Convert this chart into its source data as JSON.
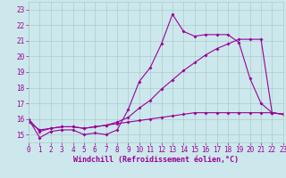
{
  "xlabel": "Windchill (Refroidissement éolien,°C)",
  "xlim": [
    0,
    23
  ],
  "ylim": [
    14.5,
    23.5
  ],
  "yticks": [
    15,
    16,
    17,
    18,
    19,
    20,
    21,
    22,
    23
  ],
  "xticks": [
    0,
    1,
    2,
    3,
    4,
    5,
    6,
    7,
    8,
    9,
    10,
    11,
    12,
    13,
    14,
    15,
    16,
    17,
    18,
    19,
    20,
    21,
    22,
    23
  ],
  "bg_color": "#cce8ec",
  "grid_color": "#aacccc",
  "line_color": "#990099",
  "line1_y": [
    16.0,
    14.8,
    15.2,
    15.3,
    15.3,
    15.0,
    15.1,
    15.0,
    15.3,
    16.6,
    18.4,
    19.3,
    20.8,
    22.7,
    21.6,
    21.3,
    21.4,
    21.4,
    21.4,
    20.9,
    18.6,
    17.0,
    16.4,
    16.3
  ],
  "line2_y": [
    16.0,
    15.2,
    15.4,
    15.5,
    15.5,
    15.4,
    15.5,
    15.6,
    15.8,
    16.1,
    16.7,
    17.2,
    17.9,
    18.5,
    19.1,
    19.6,
    20.1,
    20.5,
    20.8,
    21.1,
    21.1,
    21.1,
    16.4,
    16.3
  ],
  "line3_y": [
    15.8,
    15.3,
    15.4,
    15.5,
    15.5,
    15.4,
    15.5,
    15.6,
    15.7,
    15.8,
    15.9,
    16.0,
    16.1,
    16.2,
    16.3,
    16.4,
    16.4,
    16.4,
    16.4,
    16.4,
    16.4,
    16.4,
    16.4,
    16.3
  ],
  "markersize": 2,
  "linewidth": 0.8,
  "tick_fontsize": 5.5,
  "xlabel_fontsize": 6.0
}
